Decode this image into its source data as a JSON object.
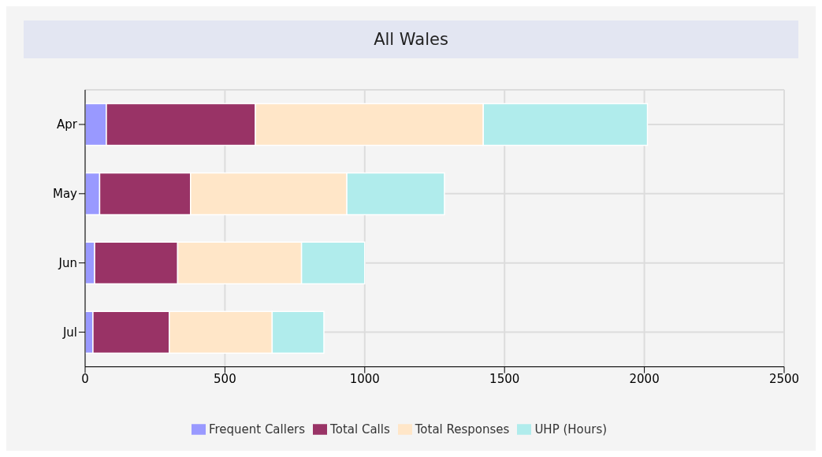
{
  "chart_data": {
    "type": "bar",
    "title": "All Wales",
    "orientation": "horizontal",
    "stacked": true,
    "categories": [
      "Apr",
      "May",
      "Jun",
      "Jul"
    ],
    "series": [
      {
        "name": "Frequent Callers",
        "color": "#9999ff",
        "values": [
          76,
          52,
          34,
          28
        ]
      },
      {
        "name": "Total Calls",
        "color": "#993366",
        "values": [
          533,
          325,
          297,
          273
        ]
      },
      {
        "name": "Total Responses",
        "color": "#ffe6c8",
        "values": [
          815,
          559,
          443,
          368
        ]
      },
      {
        "name": "UHP (Hours)",
        "color": "#b0ecec",
        "values": [
          587,
          349,
          226,
          185
        ]
      }
    ],
    "xlim": [
      0,
      2500
    ],
    "xticks": [
      0,
      500,
      1000,
      1500,
      2000,
      2500
    ],
    "grid": true,
    "legend": "bottom"
  }
}
